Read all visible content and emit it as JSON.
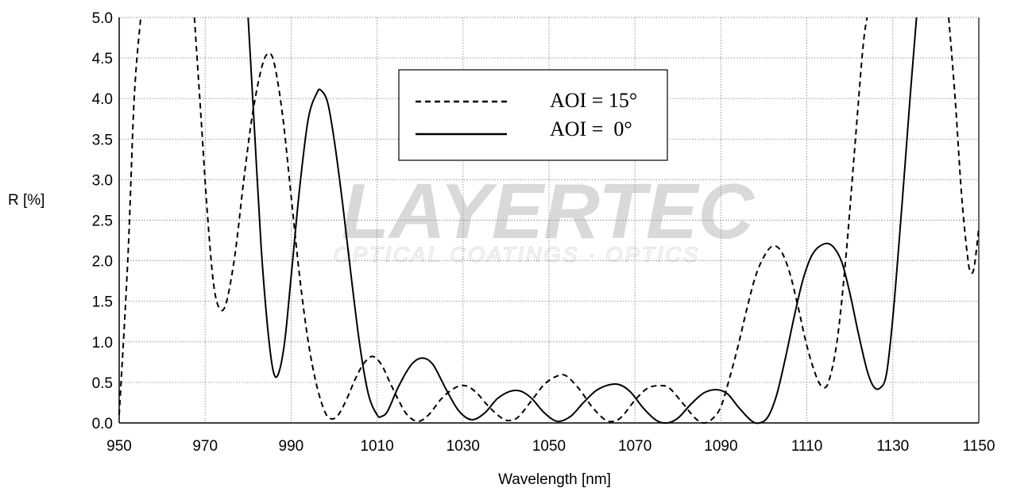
{
  "watermark": {
    "brand": "LAYERTEC",
    "registered": "®",
    "tagline": "OPTICAL COATINGS · OPTICS"
  },
  "chart_data": {
    "type": "line",
    "xlabel": "Wavelength [nm]",
    "ylabel": "R [%]",
    "xlim": [
      950,
      1150
    ],
    "ylim": [
      0,
      5
    ],
    "xticks": [
      950,
      970,
      990,
      1010,
      1030,
      1050,
      1070,
      1090,
      1110,
      1130,
      1150
    ],
    "yticks": [
      "0.0",
      "0.5",
      "1.0",
      "1.5",
      "2.0",
      "2.5",
      "3.0",
      "3.5",
      "4.0",
      "4.5",
      "5.0"
    ],
    "grid": true,
    "legend_position": "top-center",
    "series": [
      {
        "name": "AOI = 15°",
        "style": "dashed",
        "color": "#000000",
        "points": [
          [
            950,
            0.1
          ],
          [
            952,
            2.0
          ],
          [
            953.5,
            4.0
          ],
          [
            955,
            5.0
          ],
          [
            967.5,
            5.0
          ],
          [
            969,
            3.8
          ],
          [
            970.5,
            2.6
          ],
          [
            972,
            1.7
          ],
          [
            973.5,
            1.4
          ],
          [
            975,
            1.5
          ],
          [
            977,
            2.1
          ],
          [
            979,
            3.0
          ],
          [
            981,
            3.8
          ],
          [
            983,
            4.35
          ],
          [
            984.5,
            4.55
          ],
          [
            986,
            4.45
          ],
          [
            988,
            3.8
          ],
          [
            990,
            2.8
          ],
          [
            992,
            1.8
          ],
          [
            994,
            1.0
          ],
          [
            996,
            0.45
          ],
          [
            998,
            0.12
          ],
          [
            999.5,
            0.05
          ],
          [
            1001,
            0.1
          ],
          [
            1003,
            0.3
          ],
          [
            1005,
            0.55
          ],
          [
            1007,
            0.74
          ],
          [
            1009,
            0.82
          ],
          [
            1011,
            0.72
          ],
          [
            1013,
            0.5
          ],
          [
            1015,
            0.28
          ],
          [
            1017,
            0.1
          ],
          [
            1019.5,
            0.02
          ],
          [
            1022,
            0.1
          ],
          [
            1025,
            0.3
          ],
          [
            1028,
            0.43
          ],
          [
            1030.5,
            0.46
          ],
          [
            1033,
            0.38
          ],
          [
            1036,
            0.2
          ],
          [
            1039,
            0.06
          ],
          [
            1041,
            0.03
          ],
          [
            1043,
            0.08
          ],
          [
            1046,
            0.28
          ],
          [
            1049,
            0.48
          ],
          [
            1052,
            0.58
          ],
          [
            1054,
            0.58
          ],
          [
            1057,
            0.42
          ],
          [
            1060,
            0.2
          ],
          [
            1063,
            0.04
          ],
          [
            1065,
            0.02
          ],
          [
            1067,
            0.08
          ],
          [
            1070,
            0.28
          ],
          [
            1073,
            0.43
          ],
          [
            1076,
            0.46
          ],
          [
            1078,
            0.43
          ],
          [
            1081,
            0.25
          ],
          [
            1084,
            0.06
          ],
          [
            1086,
            0.0
          ],
          [
            1088,
            0.05
          ],
          [
            1090,
            0.2
          ],
          [
            1092,
            0.55
          ],
          [
            1094,
            0.95
          ],
          [
            1096,
            1.4
          ],
          [
            1098,
            1.8
          ],
          [
            1100,
            2.05
          ],
          [
            1102,
            2.18
          ],
          [
            1104,
            2.12
          ],
          [
            1106,
            1.85
          ],
          [
            1108,
            1.42
          ],
          [
            1110,
            0.95
          ],
          [
            1112,
            0.6
          ],
          [
            1113.5,
            0.45
          ],
          [
            1115,
            0.5
          ],
          [
            1117,
            1.0
          ],
          [
            1119,
            2.0
          ],
          [
            1121,
            3.3
          ],
          [
            1123,
            4.6
          ],
          [
            1124,
            5.0
          ],
          [
            1143,
            5.0
          ],
          [
            1144.5,
            4.0
          ],
          [
            1146,
            2.8
          ],
          [
            1147.5,
            2.0
          ],
          [
            1148.3,
            1.85
          ],
          [
            1149,
            1.95
          ],
          [
            1150,
            2.4
          ]
        ]
      },
      {
        "name": "AOI =  0°",
        "style": "solid",
        "color": "#000000",
        "points": [
          [
            980,
            5.0
          ],
          [
            981.5,
            3.6
          ],
          [
            983,
            2.2
          ],
          [
            984.5,
            1.2
          ],
          [
            985.8,
            0.65
          ],
          [
            987,
            0.6
          ],
          [
            988.5,
            1.0
          ],
          [
            990,
            1.8
          ],
          [
            992,
            2.9
          ],
          [
            994,
            3.75
          ],
          [
            996,
            4.07
          ],
          [
            997,
            4.1
          ],
          [
            998.5,
            3.95
          ],
          [
            1000,
            3.5
          ],
          [
            1002,
            2.7
          ],
          [
            1004,
            1.8
          ],
          [
            1006,
            0.95
          ],
          [
            1008,
            0.35
          ],
          [
            1010,
            0.1
          ],
          [
            1011,
            0.08
          ],
          [
            1012.5,
            0.15
          ],
          [
            1015,
            0.45
          ],
          [
            1018,
            0.72
          ],
          [
            1020.5,
            0.8
          ],
          [
            1023,
            0.72
          ],
          [
            1026,
            0.42
          ],
          [
            1029,
            0.15
          ],
          [
            1032,
            0.04
          ],
          [
            1035,
            0.12
          ],
          [
            1038,
            0.3
          ],
          [
            1041,
            0.39
          ],
          [
            1043.5,
            0.39
          ],
          [
            1046,
            0.3
          ],
          [
            1049,
            0.12
          ],
          [
            1052,
            0.02
          ],
          [
            1055,
            0.08
          ],
          [
            1058,
            0.25
          ],
          [
            1061,
            0.4
          ],
          [
            1064,
            0.47
          ],
          [
            1066.5,
            0.47
          ],
          [
            1069,
            0.38
          ],
          [
            1072,
            0.18
          ],
          [
            1075,
            0.03
          ],
          [
            1077.5,
            0.0
          ],
          [
            1080,
            0.06
          ],
          [
            1083,
            0.23
          ],
          [
            1086,
            0.37
          ],
          [
            1089,
            0.41
          ],
          [
            1091.5,
            0.36
          ],
          [
            1094,
            0.2
          ],
          [
            1097,
            0.03
          ],
          [
            1099,
            0.0
          ],
          [
            1101,
            0.08
          ],
          [
            1103,
            0.35
          ],
          [
            1105,
            0.8
          ],
          [
            1107,
            1.3
          ],
          [
            1109,
            1.75
          ],
          [
            1111,
            2.05
          ],
          [
            1113,
            2.18
          ],
          [
            1115.5,
            2.2
          ],
          [
            1118,
            2.0
          ],
          [
            1120,
            1.6
          ],
          [
            1122,
            1.1
          ],
          [
            1124,
            0.65
          ],
          [
            1125.5,
            0.45
          ],
          [
            1127,
            0.43
          ],
          [
            1128.5,
            0.6
          ],
          [
            1130,
            1.3
          ],
          [
            1132,
            2.6
          ],
          [
            1134,
            4.0
          ],
          [
            1135.5,
            5.0
          ]
        ]
      }
    ]
  }
}
